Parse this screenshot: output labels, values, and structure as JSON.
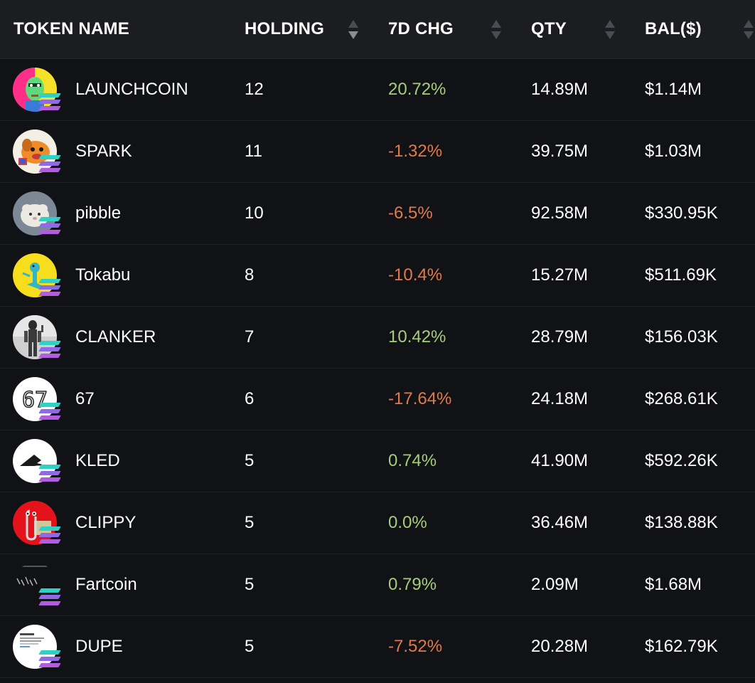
{
  "columns": {
    "token_name": "TOKEN NAME",
    "holding": "HOLDING",
    "change_7d": "7D CHG",
    "qty": "QTY",
    "balance": "BAL($)"
  },
  "colors": {
    "positive": "#a6cd7b",
    "negative": "#e07a4c",
    "header_bg": "#1c1d21",
    "row_bg": "#111215"
  },
  "rows": [
    {
      "name": "LAUNCHCOIN",
      "holding": "12",
      "change": "20.72%",
      "trend": "positive",
      "qty": "14.89M",
      "balance": "$1.14M",
      "icon": "launchcoin-token-icon"
    },
    {
      "name": "SPARK",
      "holding": "11",
      "change": "-1.32%",
      "trend": "negative",
      "qty": "39.75M",
      "balance": "$1.03M",
      "icon": "spark-token-icon"
    },
    {
      "name": "pibble",
      "holding": "10",
      "change": "-6.5%",
      "trend": "negative",
      "qty": "92.58M",
      "balance": "$330.95K",
      "icon": "pibble-token-icon"
    },
    {
      "name": "Tokabu",
      "holding": "8",
      "change": "-10.4%",
      "trend": "negative",
      "qty": "15.27M",
      "balance": "$511.69K",
      "icon": "tokabu-token-icon"
    },
    {
      "name": "CLANKER",
      "holding": "7",
      "change": "10.42%",
      "trend": "positive",
      "qty": "28.79M",
      "balance": "$156.03K",
      "icon": "clanker-token-icon"
    },
    {
      "name": "67",
      "holding": "6",
      "change": "-17.64%",
      "trend": "negative",
      "qty": "24.18M",
      "balance": "$268.61K",
      "icon": "67-token-icon"
    },
    {
      "name": "KLED",
      "holding": "5",
      "change": "0.74%",
      "trend": "positive",
      "qty": "41.90M",
      "balance": "$592.26K",
      "icon": "kled-token-icon"
    },
    {
      "name": "CLIPPY",
      "holding": "5",
      "change": "0.0%",
      "trend": "positive",
      "qty": "36.46M",
      "balance": "$138.88K",
      "icon": "clippy-token-icon"
    },
    {
      "name": "Fartcoin",
      "holding": "5",
      "change": "0.79%",
      "trend": "positive",
      "qty": "2.09M",
      "balance": "$1.68M",
      "icon": "fartcoin-token-icon"
    },
    {
      "name": "DUPE",
      "holding": "5",
      "change": "-7.52%",
      "trend": "negative",
      "qty": "20.28M",
      "balance": "$162.79K",
      "icon": "dupe-token-icon"
    }
  ]
}
